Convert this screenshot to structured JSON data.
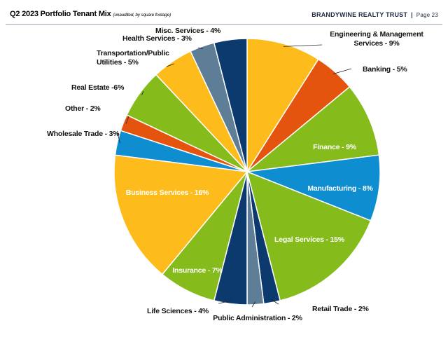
{
  "header": {
    "title": "Q2 2023 Portfolio Tenant Mix",
    "subtitle": "(unaudited, by square footage)",
    "brand": "BRANDYWINE REALTY TRUST",
    "separator": "|",
    "page": "Page 23"
  },
  "chart_data": {
    "type": "pie",
    "title": "Q2 2023 Portfolio Tenant Mix",
    "unit": "% of square footage",
    "slices": [
      {
        "label": "Engineering & Management Services - 9%",
        "lines": [
          "Engineering & Management",
          "Services - 9%"
        ],
        "value": 9,
        "color": "#fdbc1b",
        "label_inside": false
      },
      {
        "label": "Banking - 5%",
        "lines": [
          "Banking - 5%"
        ],
        "value": 5,
        "color": "#e5540f",
        "label_inside": false
      },
      {
        "label": "Finance - 9%",
        "lines": [
          "Finance - 9%"
        ],
        "value": 9,
        "color": "#85bc1c",
        "label_inside": true
      },
      {
        "label": "Manufacturing - 8%",
        "lines": [
          "Manufacturing - 8%"
        ],
        "value": 8,
        "color": "#0e8ed0",
        "label_inside": true
      },
      {
        "label": "Legal Services - 15%",
        "lines": [
          "Legal Services - 15%"
        ],
        "value": 15,
        "color": "#85bc1c",
        "label_inside": true
      },
      {
        "label": "Retail Trade - 2%",
        "lines": [
          "Retail Trade - 2%"
        ],
        "value": 2,
        "color": "#0d3a6e",
        "label_inside": false
      },
      {
        "label": "Public Administration - 2%",
        "lines": [
          "Public Administration - 2%"
        ],
        "value": 2,
        "color": "#5e7d96",
        "label_inside": false
      },
      {
        "label": "Life Sciences - 4%",
        "lines": [
          "Life Sciences - 4%"
        ],
        "value": 4,
        "color": "#0d3a6e",
        "label_inside": false
      },
      {
        "label": "Insurance - 7%",
        "lines": [
          "Insurance - 7%"
        ],
        "value": 7,
        "color": "#85bc1c",
        "label_inside": true
      },
      {
        "label": "Business Services - 16%",
        "lines": [
          "Business Services - 16%"
        ],
        "value": 16,
        "color": "#fdbc1b",
        "label_inside": true
      },
      {
        "label": "Wholesale Trade - 3%",
        "lines": [
          "Wholesale Trade - 3%"
        ],
        "value": 3,
        "color": "#0e8ed0",
        "label_inside": false
      },
      {
        "label": "Other - 2%",
        "lines": [
          "Other - 2%"
        ],
        "value": 2,
        "color": "#e5540f",
        "label_inside": false
      },
      {
        "label": "Real Estate -6%",
        "lines": [
          "Real Estate -6%"
        ],
        "value": 6,
        "color": "#85bc1c",
        "label_inside": false
      },
      {
        "label": "Transportation/Public Utilities - 5%",
        "lines": [
          "Transportation/Public",
          "Utilities - 5%"
        ],
        "value": 5,
        "color": "#fdbc1b",
        "label_inside": false
      },
      {
        "label": "Health Services - 3%",
        "lines": [
          "Health Services - 3%"
        ],
        "value": 3,
        "color": "#5e7d96",
        "label_inside": false
      },
      {
        "label": "Misc. Services - 4%",
        "lines": [
          "Misc. Services - 4%"
        ],
        "value": 4,
        "color": "#0d3a6e",
        "label_inside": false
      }
    ]
  }
}
